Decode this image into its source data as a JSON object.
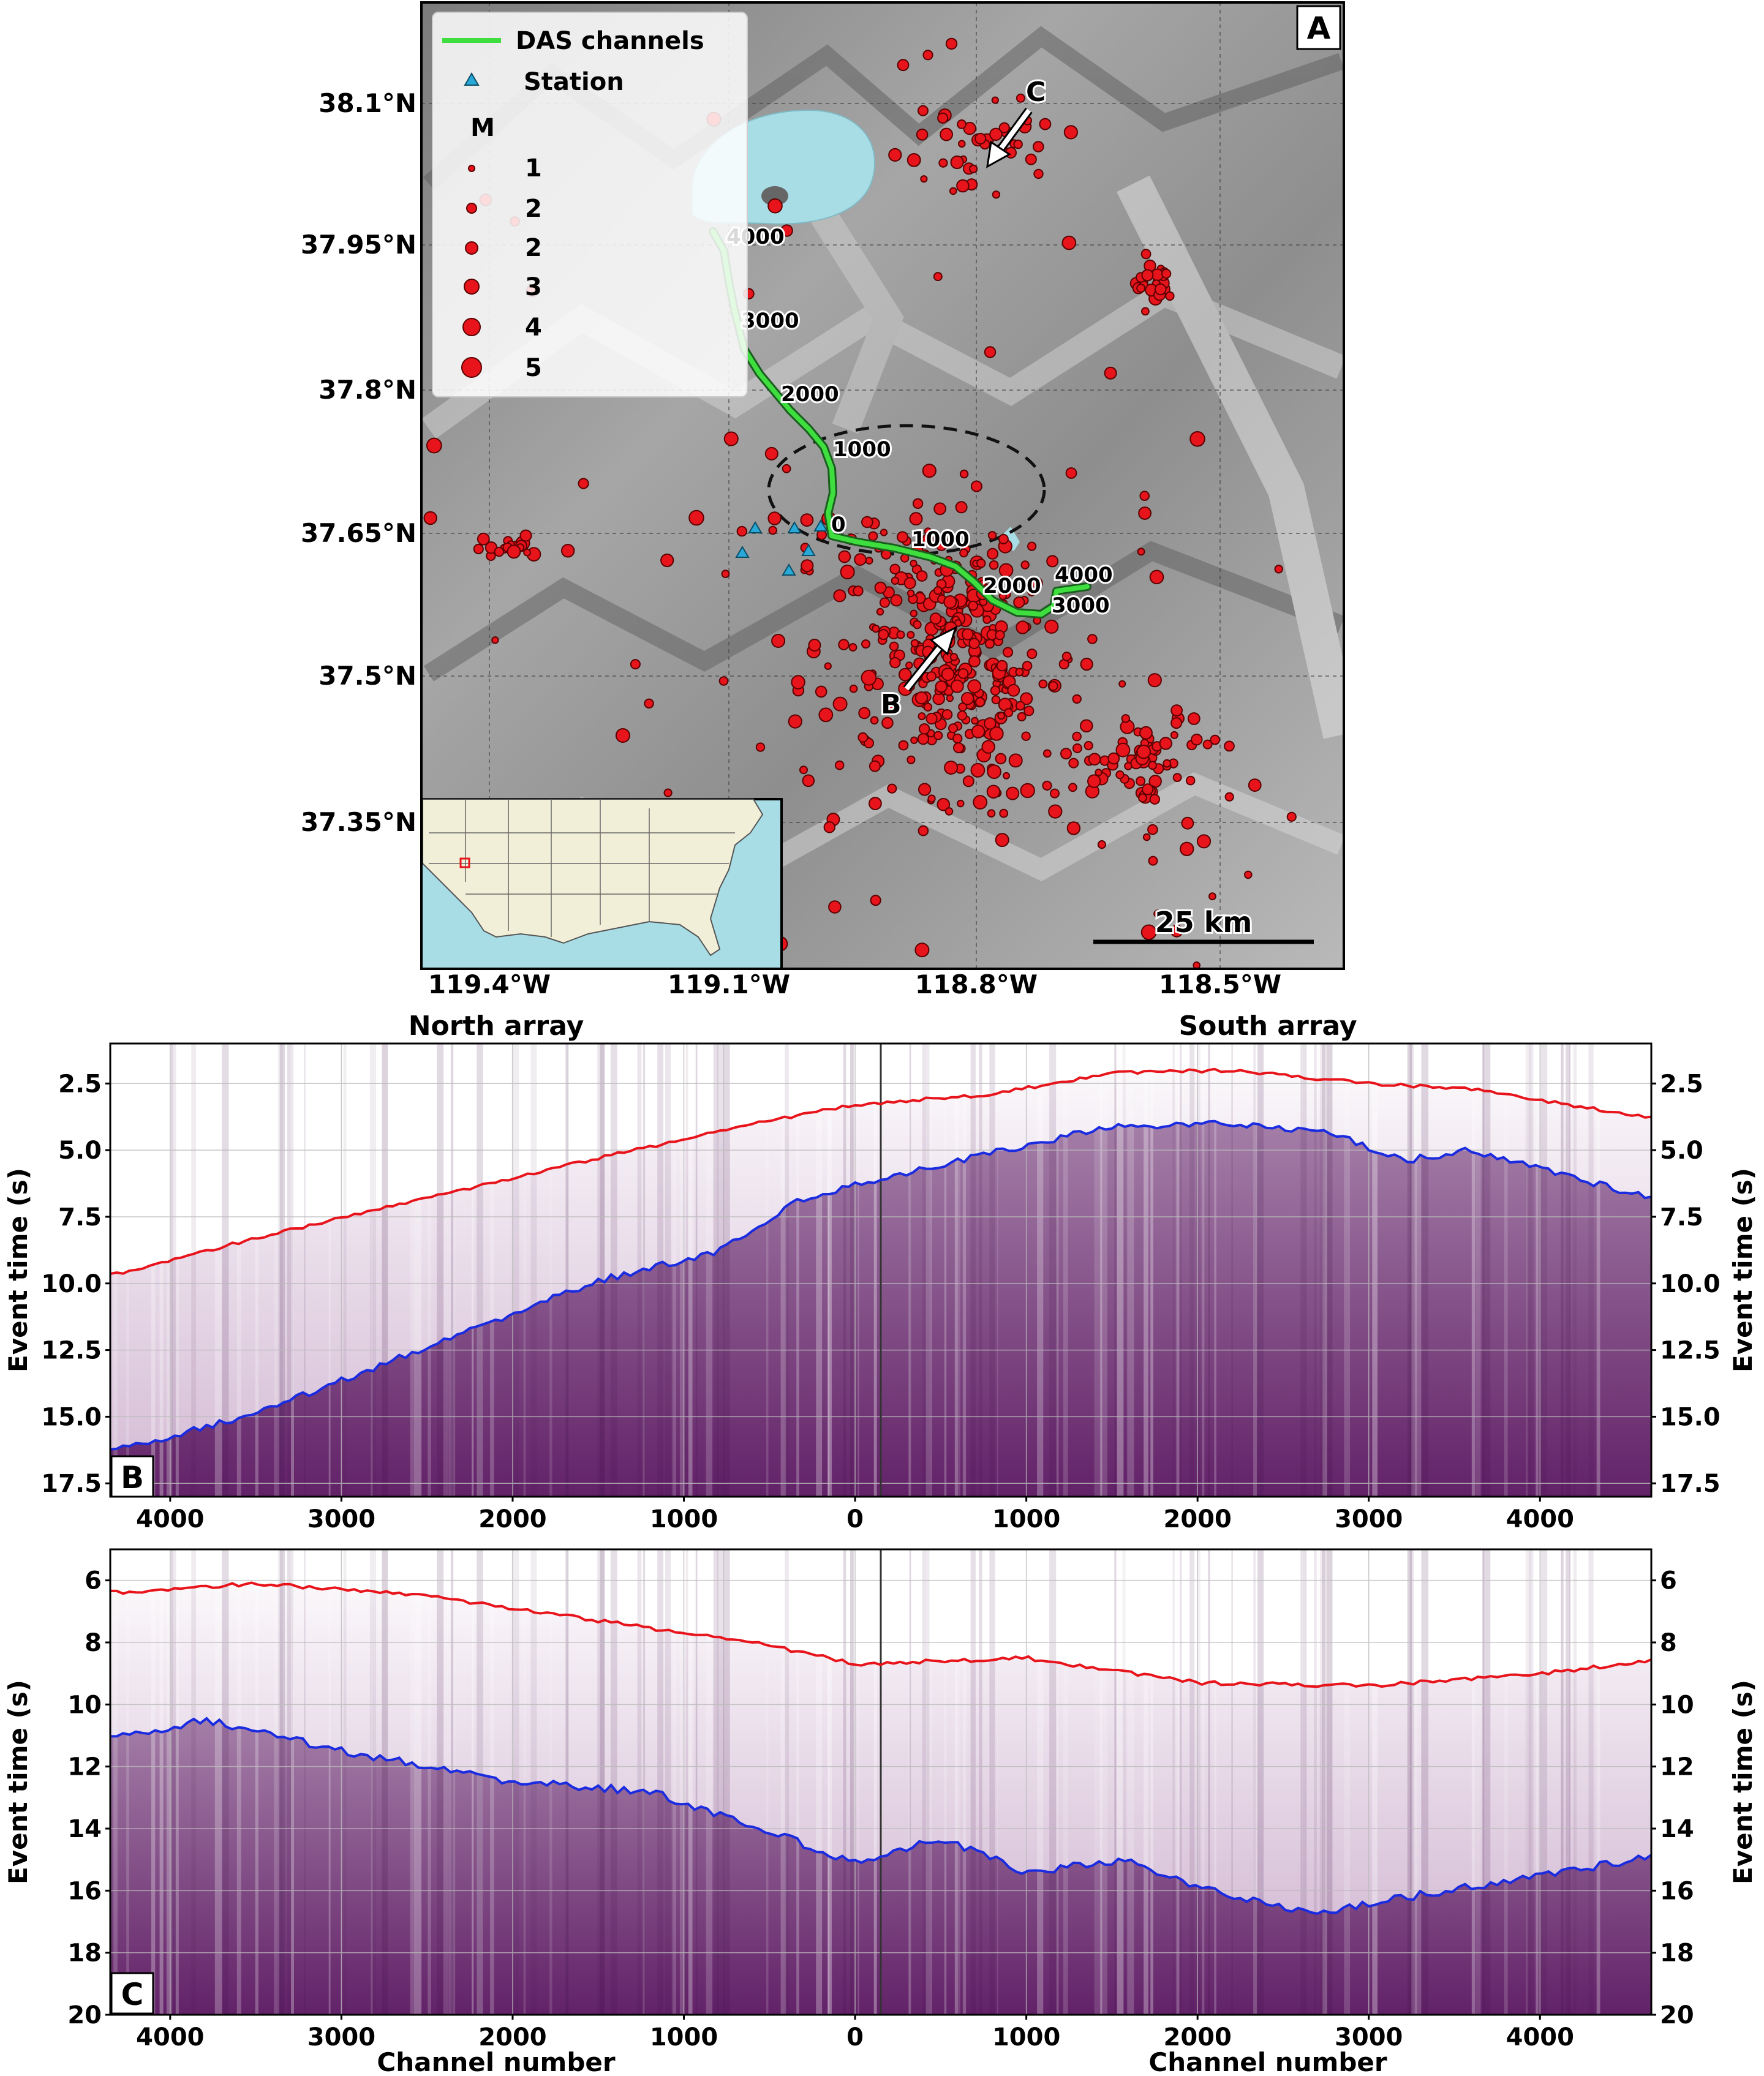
{
  "figure": {
    "panelA": {
      "panel_label": "A",
      "lat_ticks": [
        "38.1°N",
        "37.95°N",
        "37.8°N",
        "37.65°N",
        "37.5°N",
        "37.35°N"
      ],
      "lon_ticks": [
        "119.4°W",
        "119.1°W",
        "118.8°W",
        "118.5°W"
      ],
      "legend": {
        "das_label": "DAS channels",
        "station_label": "Station",
        "mag_title": "M",
        "mag_entries": [
          "1",
          "2",
          "2",
          "3",
          "4",
          "5"
        ]
      },
      "north_channel_labels": [
        "4000",
        "3000",
        "2000",
        "1000",
        "0"
      ],
      "south_channel_labels": [
        "1000",
        "2000",
        "3000",
        "4000"
      ],
      "arrow_B_label": "B",
      "arrow_C_label": "C",
      "scale_bar_label": "25 km",
      "colors": {
        "das": "#2ecc40",
        "station": "#29a9d8",
        "event": "#e8141b",
        "lake": "#a8dde6"
      }
    },
    "panelB": {
      "panel_label": "B",
      "north_title": "North array",
      "south_title": "South array",
      "ylabel": "Event time (s)",
      "yticks": [
        "2.5",
        "5.0",
        "7.5",
        "10.0",
        "12.5",
        "15.0",
        "17.5"
      ],
      "xticks": [
        "4000",
        "3000",
        "2000",
        "1000",
        "0",
        "1000",
        "2000",
        "3000",
        "4000"
      ]
    },
    "panelC": {
      "panel_label": "C",
      "ylabel": "Event time (s)",
      "yticks": [
        "6",
        "8",
        "10",
        "12",
        "14",
        "16",
        "18",
        "20"
      ],
      "xticks": [
        "4000",
        "3000",
        "2000",
        "1000",
        "0",
        "1000",
        "2000",
        "3000",
        "4000"
      ],
      "xlabel_left": "Channel number",
      "xlabel_right": "Channel number"
    }
  },
  "chart_data": [
    {
      "type": "line",
      "panel": "B",
      "xlim": [
        -4350,
        4650
      ],
      "ylim": [
        18,
        1
      ],
      "ylabel": "Event time (s)",
      "series": [
        {
          "color": "#e8141b",
          "points": [
            [
              -4350,
              9.7
            ],
            [
              -3500,
              8.3
            ],
            [
              -2500,
              6.8
            ],
            [
              -1500,
              5.3
            ],
            [
              -500,
              3.9
            ],
            [
              0,
              3.3
            ],
            [
              800,
              2.9
            ],
            [
              1500,
              2.1
            ],
            [
              2200,
              2.0
            ],
            [
              3000,
              2.5
            ],
            [
              3600,
              2.7
            ],
            [
              4650,
              3.8
            ]
          ]
        },
        {
          "color": "#1a2be0",
          "points": [
            [
              -4350,
              16.3
            ],
            [
              -3500,
              14.9
            ],
            [
              -2500,
              12.4
            ],
            [
              -1500,
              9.9
            ],
            [
              -800,
              8.8
            ],
            [
              -300,
              6.8
            ],
            [
              0,
              6.3
            ],
            [
              800,
              5.1
            ],
            [
              1500,
              4.1
            ],
            [
              2200,
              4.0
            ],
            [
              2800,
              4.4
            ],
            [
              3200,
              5.4
            ],
            [
              3600,
              5.0
            ],
            [
              4650,
              6.8
            ]
          ]
        }
      ]
    },
    {
      "type": "line",
      "panel": "C",
      "xlim": [
        -4350,
        4650
      ],
      "ylim": [
        20,
        5
      ],
      "ylabel": "Event time (s)",
      "series": [
        {
          "color": "#e8141b",
          "points": [
            [
              -4350,
              6.4
            ],
            [
              -3500,
              6.1
            ],
            [
              -2500,
              6.5
            ],
            [
              -1500,
              7.3
            ],
            [
              -500,
              8.1
            ],
            [
              0,
              8.7
            ],
            [
              1000,
              8.5
            ],
            [
              2000,
              9.3
            ],
            [
              3000,
              9.4
            ],
            [
              4000,
              9.0
            ],
            [
              4650,
              8.6
            ]
          ]
        },
        {
          "color": "#1a2be0",
          "points": [
            [
              -4350,
              11.1
            ],
            [
              -3800,
              10.5
            ],
            [
              -3000,
              11.5
            ],
            [
              -2000,
              12.5
            ],
            [
              -1200,
              12.8
            ],
            [
              -500,
              14.1
            ],
            [
              0,
              15.1
            ],
            [
              500,
              14.3
            ],
            [
              1000,
              15.4
            ],
            [
              1600,
              15.0
            ],
            [
              2000,
              15.9
            ],
            [
              2700,
              16.8
            ],
            [
              3000,
              16.4
            ],
            [
              3800,
              15.7
            ],
            [
              4650,
              14.9
            ]
          ]
        }
      ]
    }
  ]
}
